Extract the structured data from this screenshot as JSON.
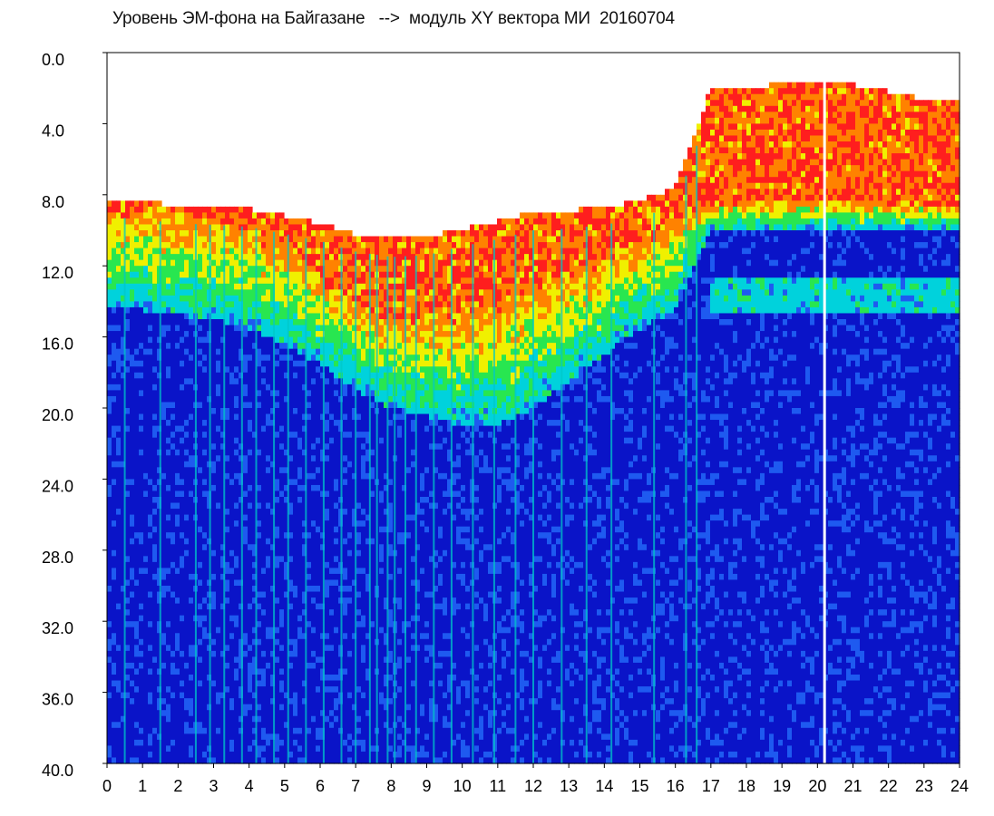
{
  "chart_data": {
    "type": "heatmap",
    "title": "Уровень ЭМ-фона на Байгазане   -->  модуль XY вектора МИ  20160704",
    "xlabel": "",
    "ylabel": "",
    "xlim": [
      0,
      24
    ],
    "ylim": [
      0,
      40
    ],
    "y_inverted": true,
    "x_ticks": [
      "0",
      "1",
      "2",
      "3",
      "4",
      "5",
      "6",
      "7",
      "8",
      "9",
      "10",
      "11",
      "12",
      "13",
      "14",
      "15",
      "16",
      "17",
      "18",
      "19",
      "20",
      "21",
      "22",
      "23",
      "24"
    ],
    "y_ticks": [
      "0.0",
      "4.0",
      "8.0",
      "12.0",
      "16.0",
      "20.0",
      "24.0",
      "28.0",
      "32.0",
      "36.0",
      "40.0"
    ],
    "grid": false,
    "colormap": [
      "#0a14c8",
      "#1e5af0",
      "#00d2dc",
      "#28e650",
      "#f0f000",
      "#ff8200",
      "#ff1e1e"
    ],
    "background_color": "#ffffff",
    "upper_edge_profile": {
      "x": [
        0,
        1,
        2,
        3,
        4,
        5,
        6,
        7,
        8,
        9,
        10,
        11,
        12,
        13,
        14,
        15,
        16,
        17,
        18,
        19,
        20,
        21,
        22,
        23,
        24
      ],
      "y": [
        8.2,
        8.4,
        8.6,
        8.7,
        8.8,
        9.2,
        9.6,
        10.2,
        10.5,
        10.4,
        9.9,
        9.5,
        9.0,
        8.9,
        8.7,
        8.3,
        7.6,
        2.0,
        1.9,
        1.8,
        1.7,
        1.8,
        2.2,
        2.6,
        2.8
      ]
    },
    "red_zone_lower_profile": {
      "x": [
        0,
        1,
        2,
        3,
        4,
        5,
        6,
        7,
        8,
        9,
        10,
        11,
        12,
        13,
        14,
        15,
        16,
        17,
        18,
        19,
        20,
        21,
        22,
        23,
        24
      ],
      "y": [
        9.0,
        9.0,
        9.0,
        9.5,
        10.0,
        11.0,
        12.5,
        14.0,
        15.0,
        15.0,
        14.5,
        14.0,
        13.0,
        12.5,
        11.5,
        10.5,
        9.5,
        8.5,
        8.3,
        8.3,
        8.3,
        8.3,
        8.4,
        8.5,
        8.6
      ]
    },
    "green_zone_lower_profile": {
      "x": [
        0,
        1,
        2,
        3,
        4,
        5,
        6,
        7,
        8,
        9,
        10,
        11,
        12,
        13,
        14,
        15,
        16,
        17,
        18,
        19,
        20,
        21,
        22,
        23,
        24
      ],
      "y": [
        14.5,
        14.5,
        14.8,
        15.0,
        15.5,
        16.5,
        17.5,
        19.0,
        20.0,
        20.5,
        21.0,
        21.0,
        20.0,
        18.5,
        17.0,
        15.5,
        14.5,
        10.0,
        10.0,
        10.0,
        10.0,
        10.0,
        10.0,
        10.0,
        10.0
      ]
    },
    "secondary_cyan_band_depth": [
      12.5,
      14.8
    ],
    "white_gaps_x": [
      20.2
    ],
    "disturbed_period_x": [
      17,
      24
    ],
    "vertical_streaks_x": [
      0.5,
      1.5,
      2.5,
      2.9,
      3.3,
      3.8,
      4.2,
      4.7,
      5.1,
      5.6,
      6.1,
      6.6,
      7.0,
      7.4,
      7.6,
      7.9,
      8.1,
      8.4,
      8.7,
      9.2,
      9.7,
      10.3,
      10.9,
      11.5,
      12.0,
      12.8,
      13.5,
      14.2,
      15.4,
      16.3,
      16.6,
      20.2
    ]
  }
}
